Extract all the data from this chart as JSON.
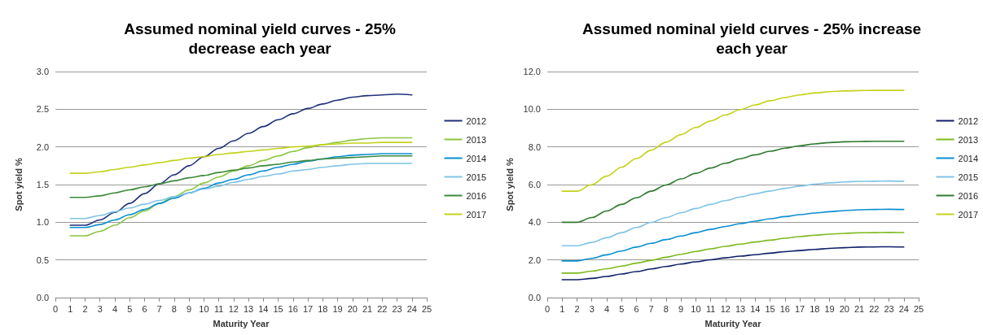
{
  "chart_data": [
    {
      "type": "line",
      "title": "Assumed nominal yield curves - 25%\ndecrease each year",
      "xlabel": "Maturity Year",
      "ylabel": "Spot yield %",
      "x": [
        1,
        2,
        3,
        4,
        5,
        6,
        7,
        8,
        9,
        10,
        11,
        12,
        13,
        14,
        15,
        16,
        17,
        18,
        19,
        20,
        21,
        22,
        23,
        24
      ],
      "xlim": [
        0,
        25
      ],
      "xticks": [
        0,
        1,
        2,
        3,
        4,
        5,
        6,
        7,
        8,
        9,
        10,
        11,
        12,
        13,
        14,
        15,
        16,
        17,
        18,
        19,
        20,
        21,
        22,
        23,
        24,
        25
      ],
      "ylim": [
        0,
        3
      ],
      "yticks": [
        {
          "value": 0,
          "label": "0.0"
        },
        0.5,
        {
          "value": 1,
          "label": "1.0"
        },
        1.5,
        {
          "value": 2,
          "label": "2.0"
        },
        2.5,
        {
          "value": 3,
          "label": "3.0"
        }
      ],
      "grid": "y",
      "legend": "right",
      "marker": "none",
      "line_style": "solid",
      "series": [
        {
          "name": "2012",
          "color": "#1f2f7a",
          "values": [
            0.96,
            0.96,
            1.03,
            1.13,
            1.25,
            1.38,
            1.51,
            1.63,
            1.75,
            1.87,
            1.98,
            2.08,
            2.18,
            2.27,
            2.36,
            2.44,
            2.51,
            2.57,
            2.62,
            2.66,
            2.68,
            2.69,
            2.7,
            2.69
          ]
        },
        {
          "name": "2013",
          "color": "#8cc63f",
          "values": [
            0.82,
            0.82,
            0.88,
            0.96,
            1.06,
            1.15,
            1.25,
            1.34,
            1.43,
            1.52,
            1.6,
            1.68,
            1.75,
            1.82,
            1.88,
            1.94,
            1.99,
            2.03,
            2.06,
            2.09,
            2.11,
            2.12,
            2.12,
            2.12
          ]
        },
        {
          "name": "2014",
          "color": "#0a8fd1",
          "values": [
            0.93,
            0.93,
            0.97,
            1.03,
            1.1,
            1.17,
            1.25,
            1.32,
            1.39,
            1.45,
            1.52,
            1.57,
            1.63,
            1.68,
            1.73,
            1.77,
            1.81,
            1.84,
            1.87,
            1.89,
            1.9,
            1.91,
            1.91,
            1.91
          ]
        },
        {
          "name": "2015",
          "color": "#7fc4e6",
          "values": [
            1.05,
            1.05,
            1.09,
            1.14,
            1.19,
            1.24,
            1.29,
            1.34,
            1.39,
            1.44,
            1.48,
            1.53,
            1.57,
            1.61,
            1.64,
            1.68,
            1.7,
            1.73,
            1.75,
            1.77,
            1.78,
            1.78,
            1.78,
            1.78
          ]
        },
        {
          "name": "2016",
          "color": "#3a8a3a",
          "values": [
            1.33,
            1.33,
            1.35,
            1.39,
            1.43,
            1.47,
            1.51,
            1.55,
            1.59,
            1.62,
            1.66,
            1.69,
            1.72,
            1.75,
            1.77,
            1.8,
            1.82,
            1.84,
            1.85,
            1.86,
            1.87,
            1.88,
            1.88,
            1.88
          ]
        },
        {
          "name": "2017",
          "color": "#c3d21a",
          "values": [
            1.65,
            1.65,
            1.67,
            1.7,
            1.73,
            1.76,
            1.79,
            1.82,
            1.85,
            1.87,
            1.9,
            1.92,
            1.94,
            1.96,
            1.98,
            2.0,
            2.01,
            2.03,
            2.04,
            2.05,
            2.05,
            2.06,
            2.06,
            2.06
          ]
        }
      ]
    },
    {
      "type": "line",
      "title": "Assumed nominal yield curves - 25% increase\neach year",
      "xlabel": "Maturity Year",
      "ylabel": "Spot yield %",
      "x": [
        1,
        2,
        3,
        4,
        5,
        6,
        7,
        8,
        9,
        10,
        11,
        12,
        13,
        14,
        15,
        16,
        17,
        18,
        19,
        20,
        21,
        22,
        23,
        24
      ],
      "xlim": [
        0,
        25
      ],
      "xticks": [
        0,
        1,
        2,
        3,
        4,
        5,
        6,
        7,
        8,
        9,
        10,
        11,
        12,
        13,
        14,
        15,
        16,
        17,
        18,
        19,
        20,
        21,
        22,
        23,
        24,
        25
      ],
      "ylim": [
        0,
        12
      ],
      "yticks": [
        {
          "value": 0,
          "label": "0.0"
        },
        {
          "value": 2,
          "label": "2.0"
        },
        {
          "value": 4,
          "label": "4.0"
        },
        {
          "value": 6,
          "label": "6.0"
        },
        {
          "value": 8,
          "label": "8.0"
        },
        {
          "value": 10,
          "label": "10.0"
        },
        {
          "value": 12,
          "label": "12.0"
        }
      ],
      "grid": "y",
      "legend": "right",
      "marker": "none",
      "line_style": "solid",
      "series": [
        {
          "name": "2012",
          "color": "#0f1f66",
          "values": [
            0.95,
            0.95,
            1.02,
            1.12,
            1.25,
            1.38,
            1.52,
            1.65,
            1.78,
            1.9,
            2.01,
            2.11,
            2.2,
            2.28,
            2.36,
            2.44,
            2.5,
            2.56,
            2.61,
            2.65,
            2.68,
            2.69,
            2.7,
            2.69
          ]
        },
        {
          "name": "2013",
          "color": "#7dba1e",
          "values": [
            1.3,
            1.3,
            1.4,
            1.53,
            1.67,
            1.83,
            1.98,
            2.14,
            2.3,
            2.45,
            2.59,
            2.72,
            2.84,
            2.95,
            3.05,
            3.15,
            3.24,
            3.31,
            3.37,
            3.41,
            3.44,
            3.45,
            3.46,
            3.45
          ]
        },
        {
          "name": "2014",
          "color": "#0a8fd1",
          "values": [
            1.95,
            1.95,
            2.08,
            2.27,
            2.47,
            2.68,
            2.88,
            3.08,
            3.27,
            3.45,
            3.62,
            3.78,
            3.93,
            4.06,
            4.19,
            4.3,
            4.4,
            4.49,
            4.56,
            4.62,
            4.66,
            4.68,
            4.69,
            4.68
          ]
        },
        {
          "name": "2015",
          "color": "#7fc4e6",
          "values": [
            2.75,
            2.75,
            2.93,
            3.18,
            3.45,
            3.72,
            3.99,
            4.25,
            4.5,
            4.73,
            4.95,
            5.15,
            5.34,
            5.51,
            5.66,
            5.8,
            5.92,
            6.02,
            6.09,
            6.14,
            6.17,
            6.18,
            6.19,
            6.18
          ]
        },
        {
          "name": "2016",
          "color": "#2f7a2f",
          "values": [
            4.0,
            4.0,
            4.25,
            4.6,
            4.95,
            5.3,
            5.65,
            5.98,
            6.3,
            6.6,
            6.88,
            7.13,
            7.37,
            7.58,
            7.77,
            7.93,
            8.06,
            8.16,
            8.23,
            8.27,
            8.29,
            8.3,
            8.3,
            8.3
          ]
        },
        {
          "name": "2017",
          "color": "#c3d21a",
          "values": [
            5.65,
            5.65,
            6.0,
            6.45,
            6.92,
            7.38,
            7.83,
            8.25,
            8.65,
            9.03,
            9.38,
            9.7,
            9.98,
            10.23,
            10.45,
            10.62,
            10.76,
            10.86,
            10.93,
            10.97,
            10.99,
            11.0,
            11.0,
            11.0
          ]
        }
      ]
    }
  ]
}
